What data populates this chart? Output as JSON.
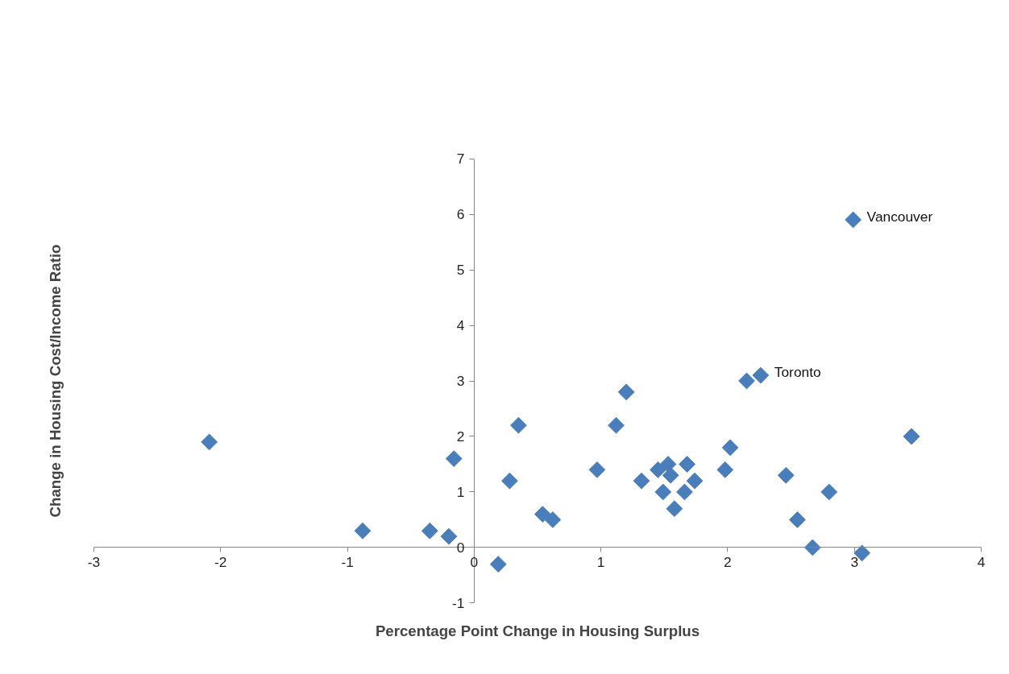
{
  "chart_data": {
    "type": "scatter",
    "xlabel": "Percentage Point Change in Housing Surplus",
    "ylabel": "Change in Housing Cost/Income Ratio",
    "x": [
      -2.09,
      -0.88,
      -0.35,
      -0.2,
      -0.16,
      0.19,
      0.28,
      0.35,
      0.54,
      0.62,
      0.97,
      1.12,
      1.2,
      1.32,
      1.45,
      1.49,
      1.53,
      1.55,
      1.58,
      1.66,
      1.68,
      1.74,
      1.98,
      2.02,
      2.15,
      2.26,
      2.46,
      2.55,
      2.67,
      2.8,
      3.06,
      3.45,
      2.99
    ],
    "series": [
      {
        "color": "#4a7ebb",
        "values": [
          1.9,
          0.3,
          0.3,
          0.2,
          1.6,
          -0.3,
          1.2,
          2.2,
          0.6,
          0.5,
          1.4,
          2.2,
          2.8,
          1.2,
          1.4,
          1.0,
          1.5,
          1.3,
          0.7,
          1.0,
          1.5,
          1.2,
          1.4,
          1.8,
          3.0,
          3.1,
          1.3,
          0.5,
          0.0,
          1.0,
          -0.1,
          2.0,
          5.9
        ]
      }
    ],
    "xlim": [
      -3,
      4
    ],
    "xticks": [
      -3,
      -2,
      -1,
      0,
      1,
      2,
      3,
      4
    ],
    "ylim": [
      -1,
      7
    ],
    "yticks": [
      -1,
      0,
      1,
      2,
      3,
      4,
      5,
      6,
      7
    ],
    "marker": "diamond",
    "grid": false,
    "annotations": [
      {
        "text": "Toronto",
        "x": 2.26,
        "y": 3.1
      },
      {
        "text": "Vancouver",
        "x": 2.99,
        "y": 5.9
      }
    ]
  }
}
